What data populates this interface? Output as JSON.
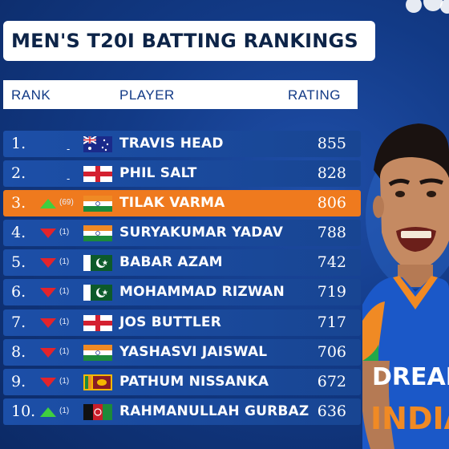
{
  "title": "MEN'S T20I BATTING RANKINGS",
  "columns": {
    "rank": "RANK",
    "player": "PLAYER",
    "rating": "RATING"
  },
  "colors": {
    "background": "#123a86",
    "row": "#1c4fa8",
    "highlight": "#ef7a1e",
    "up": "#3fcf3f",
    "down": "#e3242b"
  },
  "rows": [
    {
      "rank": "1.",
      "move": "-",
      "change": "",
      "flag": "australia-flag-icon",
      "player": "TRAVIS HEAD",
      "rating": "855"
    },
    {
      "rank": "2.",
      "move": "-",
      "change": "",
      "flag": "england-flag-icon",
      "player": "PHIL SALT",
      "rating": "828"
    },
    {
      "rank": "3.",
      "move": "up",
      "change": "(69)",
      "flag": "india-flag-icon",
      "player": "TILAK VARMA",
      "rating": "806"
    },
    {
      "rank": "4.",
      "move": "down",
      "change": "(1)",
      "flag": "india-flag-icon",
      "player": "SURYAKUMAR YADAV",
      "rating": "788"
    },
    {
      "rank": "5.",
      "move": "down",
      "change": "(1)",
      "flag": "pakistan-flag-icon",
      "player": "BABAR AZAM",
      "rating": "742"
    },
    {
      "rank": "6.",
      "move": "down",
      "change": "(1)",
      "flag": "pakistan-flag-icon",
      "player": "MOHAMMAD RIZWAN",
      "rating": "719"
    },
    {
      "rank": "7.",
      "move": "down",
      "change": "(1)",
      "flag": "england-flag-icon",
      "player": "JOS BUTTLER",
      "rating": "717"
    },
    {
      "rank": "8.",
      "move": "down",
      "change": "(1)",
      "flag": "india-flag-icon",
      "player": "YASHASVI JAISWAL",
      "rating": "706"
    },
    {
      "rank": "9.",
      "move": "down",
      "change": "(1)",
      "flag": "sri-lanka-flag-icon",
      "player": "PATHUM NISSANKA",
      "rating": "672"
    },
    {
      "rank": "10.",
      "move": "up",
      "change": "(1)",
      "flag": "afghanistan-flag-icon",
      "player": "RAHMANULLAH GURBAZ",
      "rating": "636"
    }
  ],
  "jersey": {
    "sponsor": "DREAM",
    "team": "INDIA"
  }
}
